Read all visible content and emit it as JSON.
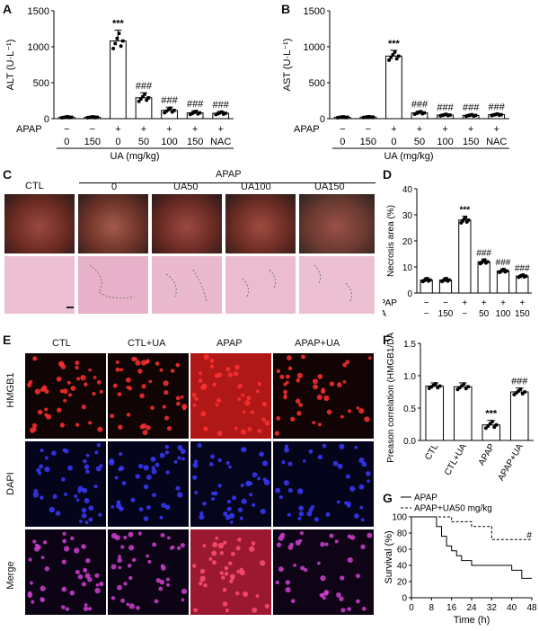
{
  "panels": {
    "A": "A",
    "B": "B",
    "C": "C",
    "D": "D",
    "E": "E",
    "F": "F",
    "G": "G"
  },
  "colors": {
    "bar_fill": "#ffffff",
    "bar_stroke": "#000000",
    "liver": "#8a3a30",
    "he_stain": "#e7b5cc",
    "hmgb1": "#d81818",
    "dapi": "#1a1ad8"
  },
  "chart_data": [
    {
      "panel": "A",
      "type": "bar",
      "ylabel": "ALT (U·L⁻¹)",
      "ylim": [
        0,
        1500
      ],
      "yticks": [
        0,
        500,
        1000,
        1500
      ],
      "categories": [
        "1",
        "2",
        "3",
        "4",
        "5",
        "6",
        "7"
      ],
      "values": [
        20,
        20,
        1080,
        290,
        115,
        80,
        75
      ],
      "errors": [
        10,
        8,
        150,
        70,
        45,
        30,
        25
      ],
      "annotations": [
        "",
        "",
        "***",
        "###",
        "###",
        "###",
        "###"
      ],
      "row_labels": [
        "APAP",
        "UA (mg/kg)"
      ],
      "apap_row": [
        "−",
        "−",
        "+",
        "+",
        "+",
        "+",
        "+"
      ],
      "ua_row": [
        "0",
        "150",
        "0",
        "50",
        "100",
        "150",
        "NAC"
      ]
    },
    {
      "panel": "B",
      "type": "bar",
      "ylabel": "AST (U·L⁻¹)",
      "ylim": [
        0,
        1500
      ],
      "yticks": [
        0,
        500,
        1000,
        1500
      ],
      "categories": [
        "1",
        "2",
        "3",
        "4",
        "5",
        "6",
        "7"
      ],
      "values": [
        20,
        22,
        870,
        80,
        50,
        45,
        55
      ],
      "errors": [
        8,
        8,
        80,
        25,
        15,
        15,
        15
      ],
      "annotations": [
        "",
        "",
        "***",
        "###",
        "###",
        "###",
        "###"
      ],
      "row_labels": [
        "APAP",
        "UA (mg/kg)"
      ],
      "apap_row": [
        "−",
        "−",
        "+",
        "+",
        "+",
        "+",
        "+"
      ],
      "ua_row": [
        "0",
        "150",
        "0",
        "50",
        "100",
        "150",
        "NAC"
      ]
    },
    {
      "panel": "D",
      "type": "bar",
      "ylabel": "Necrosis area (%)",
      "ylim": [
        0,
        40
      ],
      "yticks": [
        0,
        10,
        20,
        30,
        40
      ],
      "categories": [
        "1",
        "2",
        "3",
        "4",
        "5",
        "6"
      ],
      "values": [
        5,
        5,
        28,
        12,
        8.5,
        6.5
      ],
      "errors": [
        0.8,
        0.8,
        1.5,
        1.0,
        0.8,
        0.6
      ],
      "annotations": [
        "",
        "",
        "***",
        "###",
        "###",
        "###"
      ],
      "row_labels": [
        "APAP",
        "UA"
      ],
      "apap_row": [
        "−",
        "−",
        "+",
        "+",
        "+",
        "+"
      ],
      "ua_row": [
        "−",
        "150",
        "−",
        "50",
        "100",
        "150"
      ]
    },
    {
      "panel": "F",
      "type": "bar",
      "ylabel": "Preason correlation (HMGB1/DAPI)",
      "ylim": [
        0,
        1.5
      ],
      "yticks": [
        "0.0",
        "0.5",
        "1.0",
        "1.5"
      ],
      "categories": [
        "CTL",
        "CTL+UA",
        "APAP",
        "APAP+UA"
      ],
      "values": [
        0.84,
        0.83,
        0.24,
        0.75
      ],
      "errors": [
        0.05,
        0.06,
        0.07,
        0.06
      ],
      "annotations": [
        "",
        "",
        "***",
        "###"
      ]
    },
    {
      "panel": "G",
      "type": "line",
      "xlabel": "Time (h)",
      "ylabel": "Survival (%)",
      "xlim": [
        0,
        48
      ],
      "ylim": [
        0,
        100
      ],
      "xticks": [
        0,
        8,
        16,
        24,
        32,
        40,
        48
      ],
      "yticks": [
        0,
        20,
        40,
        60,
        80,
        100
      ],
      "series": [
        {
          "name": "APAP",
          "style": "solid",
          "x": [
            0,
            8,
            10,
            12,
            14,
            16,
            18,
            20,
            24,
            32,
            40,
            44,
            48
          ],
          "y": [
            100,
            100,
            88,
            76,
            64,
            58,
            52,
            46,
            40,
            40,
            34,
            24,
            24
          ]
        },
        {
          "name": "APAP+UA50 mg/kg",
          "style": "dashed",
          "x": [
            0,
            12,
            16,
            24,
            32,
            48
          ],
          "y": [
            100,
            100,
            94,
            88,
            72,
            72
          ]
        }
      ],
      "annotation": "#"
    }
  ],
  "panelC": {
    "group_label": "APAP",
    "columns": [
      "CTL",
      "0",
      "UA50",
      "UA100",
      "UA150"
    ]
  },
  "panelE": {
    "columns": [
      "CTL",
      "CTL+UA",
      "APAP",
      "APAP+UA"
    ],
    "rows": [
      "HMGB1",
      "DAPI",
      "Merge"
    ]
  }
}
